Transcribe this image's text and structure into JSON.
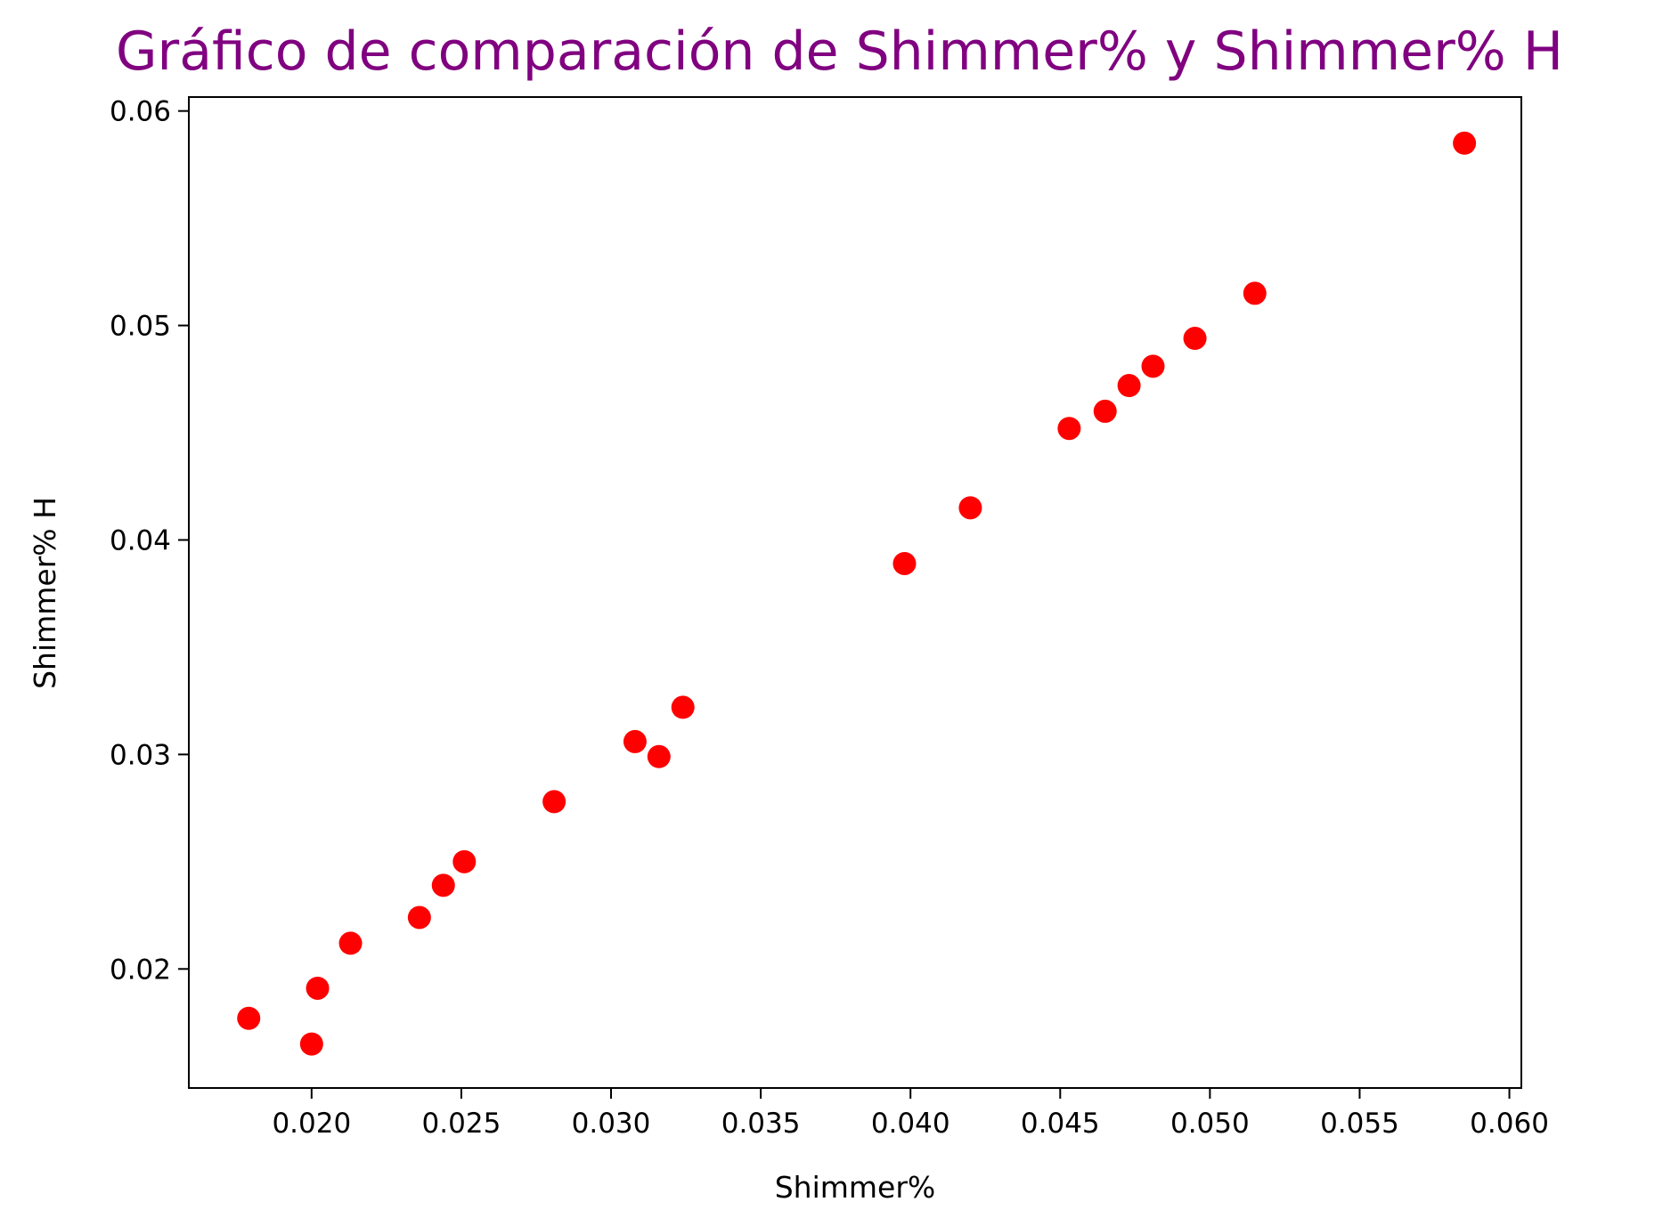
{
  "colors": {
    "title": "#800080",
    "points": "#ff0000",
    "axes": "#000000",
    "background": "#ffffff"
  },
  "chart_data": {
    "type": "scatter",
    "title": "Gráfico de comparación de Shimmer% y Shimmer% H",
    "xlabel": "Shimmer%",
    "ylabel": "Shimmer% H",
    "xlim": [
      0.0159,
      0.0604
    ],
    "ylim": [
      0.01445,
      0.06065
    ],
    "xticks": [
      "0.020",
      "0.025",
      "0.030",
      "0.035",
      "0.040",
      "0.045",
      "0.050",
      "0.055",
      "0.060"
    ],
    "yticks": [
      "0.02",
      "0.03",
      "0.04",
      "0.05",
      "0.06"
    ],
    "grid": false,
    "series": [
      {
        "points": [
          {
            "x": 0.0179,
            "y": 0.0177
          },
          {
            "x": 0.02,
            "y": 0.0165
          },
          {
            "x": 0.0202,
            "y": 0.0191
          },
          {
            "x": 0.0213,
            "y": 0.0212
          },
          {
            "x": 0.0236,
            "y": 0.0224
          },
          {
            "x": 0.0244,
            "y": 0.0239
          },
          {
            "x": 0.0251,
            "y": 0.025
          },
          {
            "x": 0.0281,
            "y": 0.0278
          },
          {
            "x": 0.0308,
            "y": 0.0306
          },
          {
            "x": 0.0316,
            "y": 0.0299
          },
          {
            "x": 0.0324,
            "y": 0.0322
          },
          {
            "x": 0.0398,
            "y": 0.0389
          },
          {
            "x": 0.042,
            "y": 0.0415
          },
          {
            "x": 0.0453,
            "y": 0.0452
          },
          {
            "x": 0.0465,
            "y": 0.046
          },
          {
            "x": 0.0473,
            "y": 0.0472
          },
          {
            "x": 0.0481,
            "y": 0.0481
          },
          {
            "x": 0.0495,
            "y": 0.0494
          },
          {
            "x": 0.0515,
            "y": 0.0515
          },
          {
            "x": 0.0585,
            "y": 0.0585
          }
        ]
      }
    ]
  }
}
